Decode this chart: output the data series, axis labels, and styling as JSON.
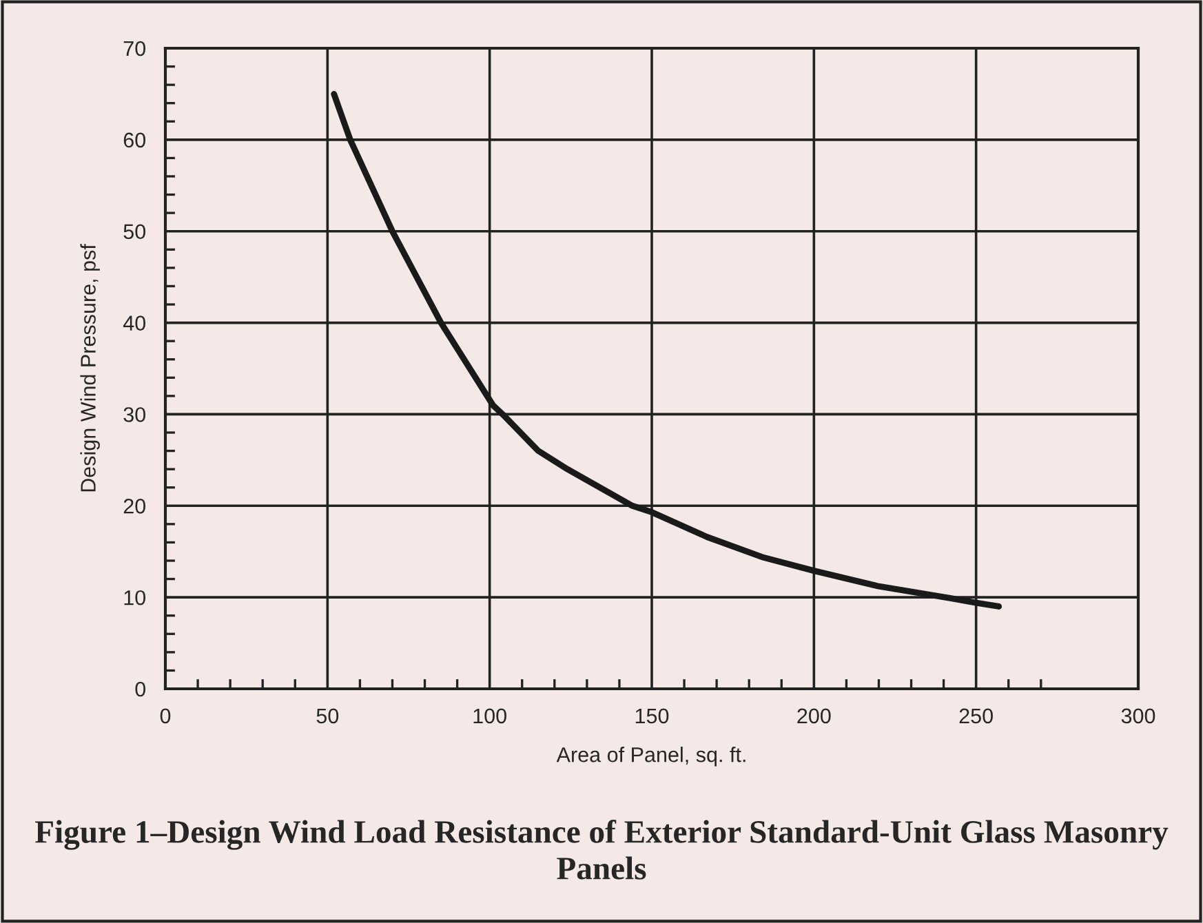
{
  "chart_data": {
    "type": "line",
    "title": "Figure 1–Design Wind Load Resistance of Exterior Standard-Unit Glass Masonry Panels",
    "xlabel": "Area of Panel, sq. ft.",
    "ylabel": "Design Wind Pressure, psf",
    "series": [
      {
        "color": "#1a1a1a",
        "x": [
          52,
          57,
          70,
          85,
          101,
          104,
          115,
          124,
          144,
          150,
          167,
          184,
          200,
          220,
          242,
          250,
          257
        ],
        "values": [
          65,
          60,
          50,
          40,
          31,
          30,
          26,
          24,
          20,
          19.3,
          16.6,
          14.4,
          12.9,
          11.2,
          9.9,
          9.4,
          9
        ]
      }
    ],
    "xlim": [
      0,
      300
    ],
    "ylim": [
      0,
      70
    ],
    "xticks": [
      0,
      {
        "value": 10,
        "label": null
      },
      {
        "value": 20,
        "label": null
      },
      {
        "value": 30,
        "label": null
      },
      {
        "value": 40,
        "label": null
      },
      50,
      {
        "value": 60,
        "label": null
      },
      {
        "value": 70,
        "label": null
      },
      {
        "value": 80,
        "label": null
      },
      {
        "value": 90,
        "label": null
      },
      100,
      {
        "value": 110,
        "label": null
      },
      {
        "value": 120,
        "label": null
      },
      {
        "value": 130,
        "label": null
      },
      {
        "value": 140,
        "label": null
      },
      150,
      {
        "value": 160,
        "label": null
      },
      {
        "value": 170,
        "label": null
      },
      {
        "value": 180,
        "label": null
      },
      {
        "value": 190,
        "label": null
      },
      200,
      {
        "value": 210,
        "label": null
      },
      {
        "value": 220,
        "label": null
      },
      {
        "value": 230,
        "label": null
      },
      {
        "value": 240,
        "label": null
      },
      250,
      {
        "value": 260,
        "label": null
      },
      {
        "value": 270,
        "label": null
      },
      300
    ],
    "yticks": [
      0,
      {
        "value": 2,
        "label": null
      },
      {
        "value": 4,
        "label": null
      },
      {
        "value": 6,
        "label": null
      },
      {
        "value": 8,
        "label": null
      },
      10,
      {
        "value": 12,
        "label": null
      },
      {
        "value": 14,
        "label": null
      },
      {
        "value": 16,
        "label": null
      },
      {
        "value": 18,
        "label": null
      },
      20,
      {
        "value": 22,
        "label": null
      },
      {
        "value": 24,
        "label": null
      },
      {
        "value": 26,
        "label": null
      },
      {
        "value": 28,
        "label": null
      },
      30,
      {
        "value": 32,
        "label": null
      },
      {
        "value": 34,
        "label": null
      },
      {
        "value": 36,
        "label": null
      },
      {
        "value": 38,
        "label": null
      },
      40,
      {
        "value": 42,
        "label": null
      },
      {
        "value": 44,
        "label": null
      },
      {
        "value": 46,
        "label": null
      },
      {
        "value": 48,
        "label": null
      },
      50,
      {
        "value": 52,
        "label": null
      },
      {
        "value": 54,
        "label": null
      },
      {
        "value": 56,
        "label": null
      },
      {
        "value": 58,
        "label": null
      },
      60,
      {
        "value": 62,
        "label": null
      },
      {
        "value": 64,
        "label": null
      },
      {
        "value": 66,
        "label": null
      },
      {
        "value": 68,
        "label": null
      },
      70
    ],
    "grid": true,
    "marker": "none",
    "line_style": "solid",
    "legend": false
  }
}
